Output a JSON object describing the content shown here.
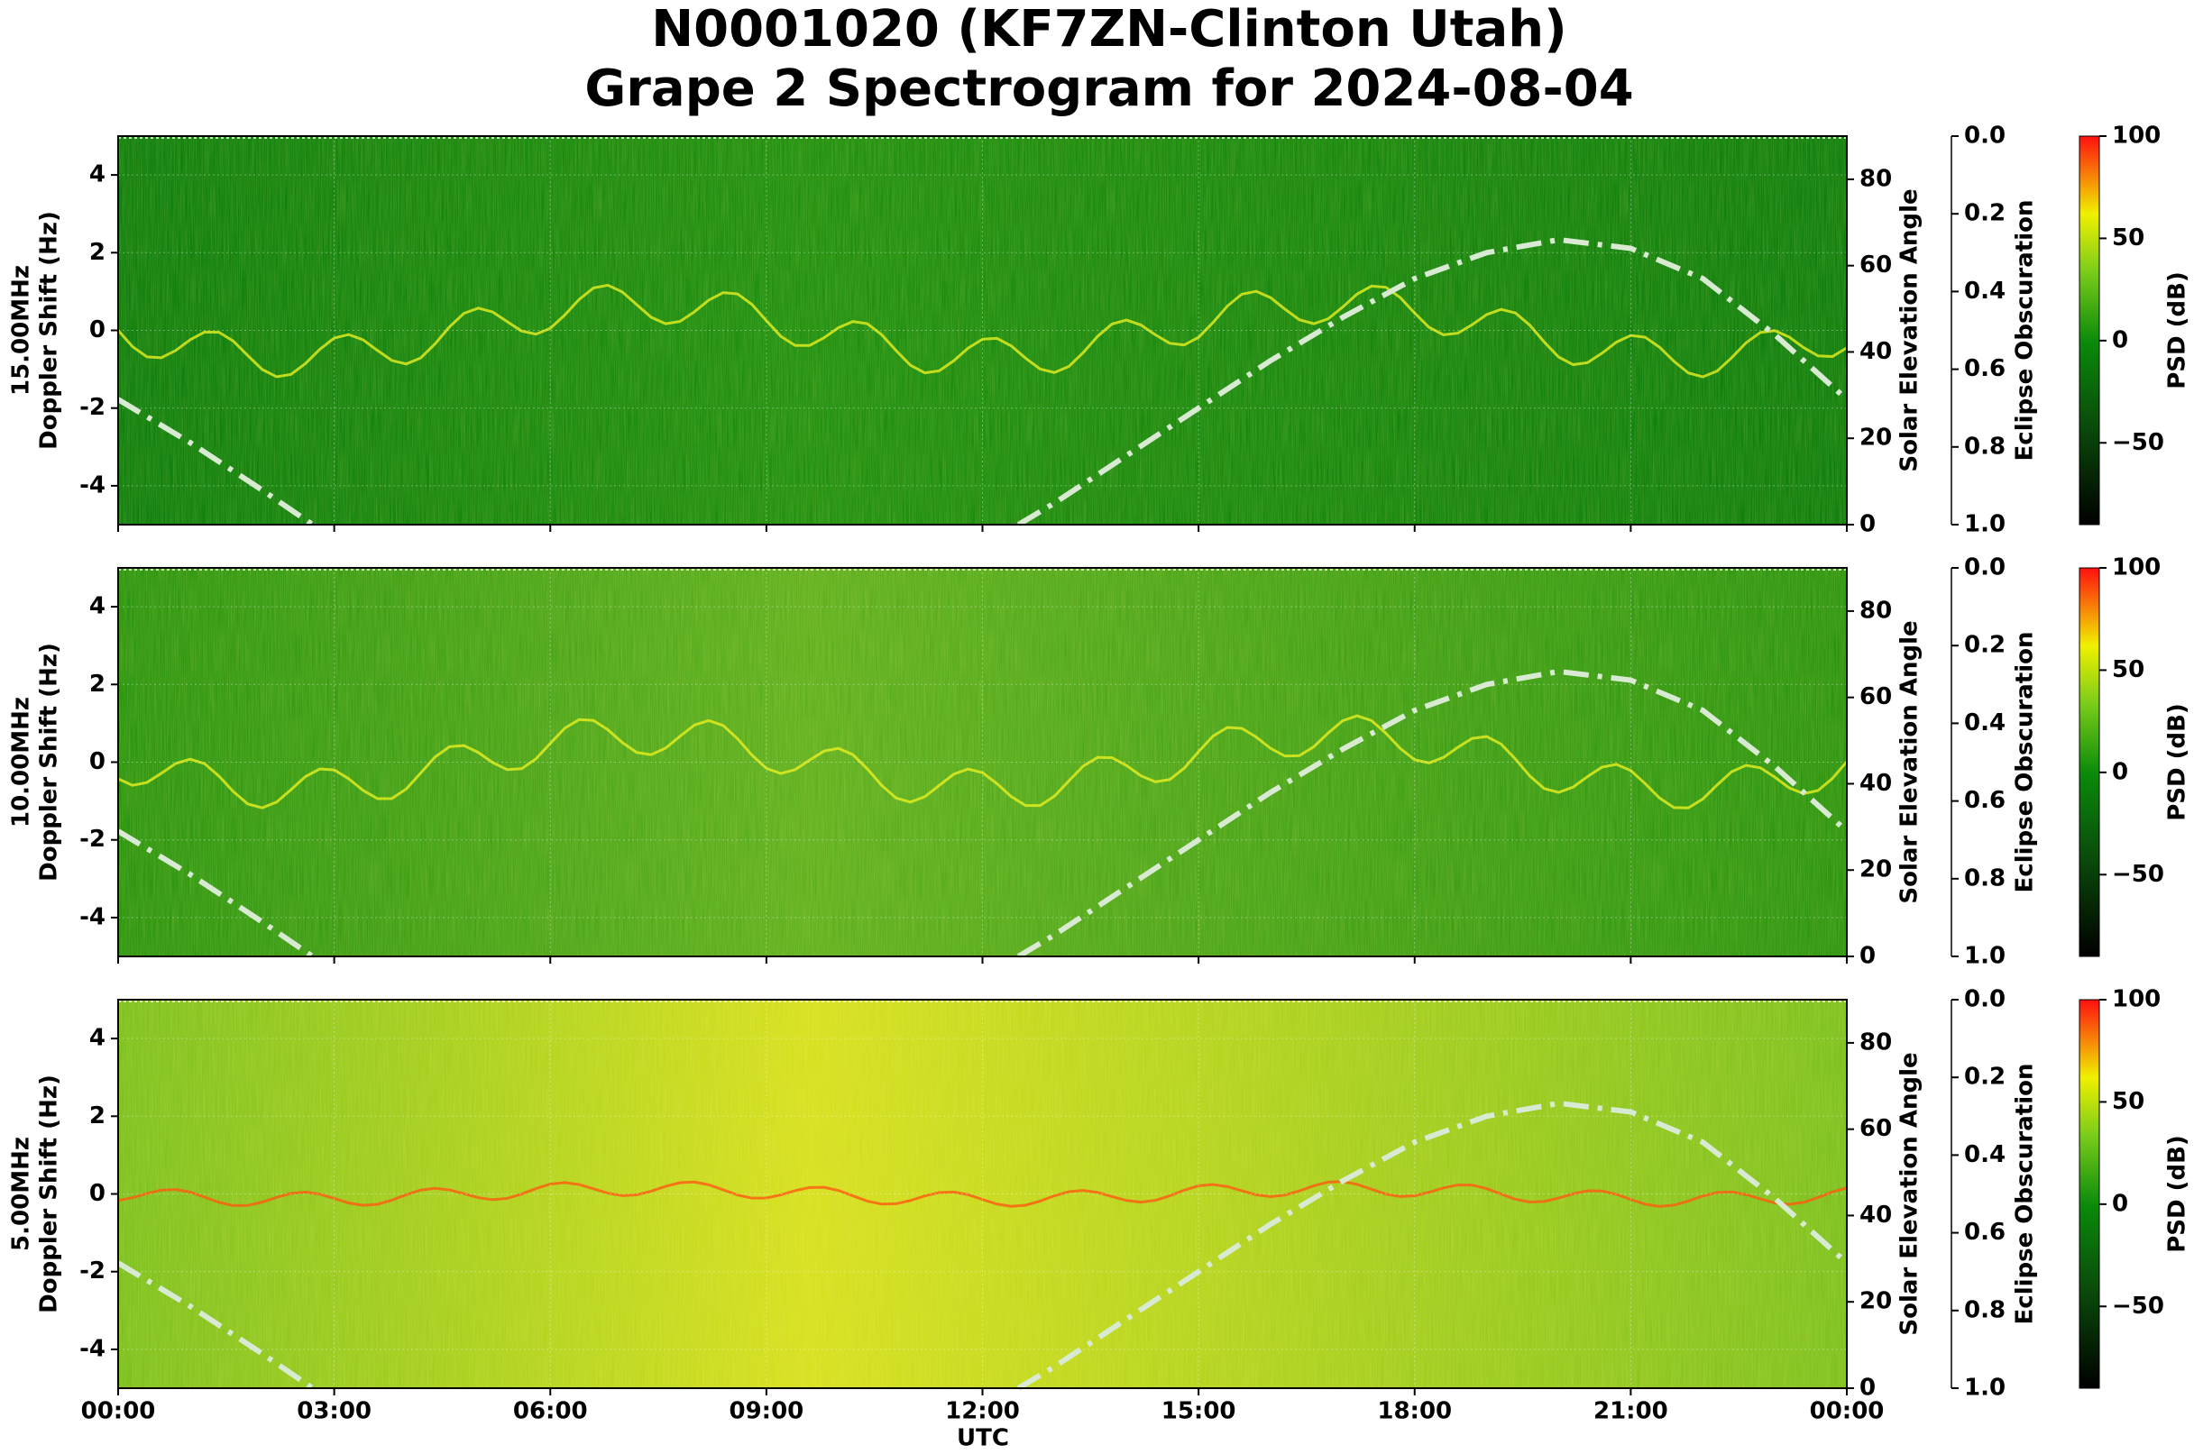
{
  "chart_data": {
    "type": "spectrogram",
    "title": [
      "N0001020 (KF7ZN-Clinton Utah)",
      "Grape 2 Spectrogram for 2024-08-04"
    ],
    "xlabel": "UTC",
    "xlim": [
      0,
      24
    ],
    "xticks": [
      {
        "value": 0,
        "label": "00:00"
      },
      {
        "value": 3,
        "label": "03:00"
      },
      {
        "value": 6,
        "label": "06:00"
      },
      {
        "value": 9,
        "label": "09:00"
      },
      {
        "value": 12,
        "label": "12:00"
      },
      {
        "value": 15,
        "label": "15:00"
      },
      {
        "value": 18,
        "label": "18:00"
      },
      {
        "value": 21,
        "label": "21:00"
      },
      {
        "value": 24,
        "label": "00:00"
      }
    ],
    "ylim": [
      -5,
      5
    ],
    "yticks": [
      -4,
      -2,
      0,
      2,
      4
    ],
    "y2label": "Solar Elevation Angle",
    "y2lim": [
      0,
      90
    ],
    "y2ticks": [
      0,
      20,
      40,
      60,
      80
    ],
    "y3label": "Eclipse Obscuration",
    "y3lim": [
      1,
      0
    ],
    "y3ticks": [
      {
        "value": 0,
        "label": "0.0"
      },
      {
        "value": 0.2,
        "label": "0.2"
      },
      {
        "value": 0.4,
        "label": "0.4"
      },
      {
        "value": 0.6,
        "label": "0.6"
      },
      {
        "value": 0.8,
        "label": "0.8"
      },
      {
        "value": 1,
        "label": "1.0"
      }
    ],
    "colorbar_label": "PSD (dB)",
    "clim": [
      -90,
      100
    ],
    "cticks": [
      {
        "value": -50,
        "label": "−50"
      },
      0,
      50,
      100
    ],
    "grid": true,
    "series": [
      {
        "name": "Solar Elevation Angle",
        "color": "#d9ead3",
        "axis": "y2",
        "x": [
          0,
          1,
          2,
          2.7,
          7,
          12.5,
          13,
          14,
          15,
          16,
          17,
          18,
          19,
          20,
          21,
          22,
          23,
          24
        ],
        "values": [
          29,
          19,
          8,
          0,
          null,
          0,
          5,
          16,
          27,
          38,
          48,
          57,
          63,
          66,
          64,
          57,
          44,
          29
        ]
      }
    ],
    "panels": [
      {
        "ylabel": [
          "15.00MHz",
          "Doppler Shift (Hz)"
        ]
      },
      {
        "ylabel": [
          "10.00MHz",
          "Doppler Shift (Hz)"
        ]
      },
      {
        "ylabel": [
          "5.00MHz",
          "Doppler Shift (Hz)"
        ]
      }
    ]
  }
}
